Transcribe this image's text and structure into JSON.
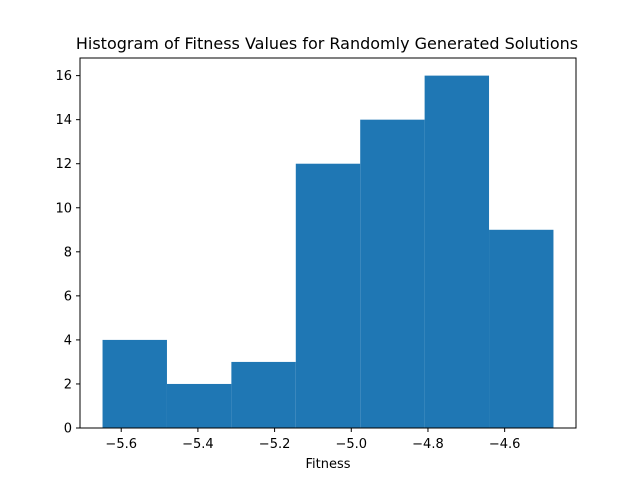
{
  "chart_data": {
    "type": "bar",
    "title": "Histogram of Fitness Values for Randomly Generated Solutions",
    "xlabel": "Fitness",
    "ylabel": "",
    "bin_edges": [
      -5.6487,
      -5.4807,
      -5.3127,
      -5.1447,
      -4.9767,
      -4.8087,
      -4.6407,
      -4.4727
    ],
    "values": [
      4,
      2,
      3,
      12,
      14,
      16,
      9
    ],
    "bar_color": "#1f77b4",
    "xlim": [
      -5.7075,
      -4.4139
    ],
    "ylim": [
      0,
      16.8
    ],
    "xticks": [
      -5.6,
      -5.4,
      -5.2,
      -5.0,
      -4.8,
      -4.6
    ],
    "xtick_labels": [
      "−5.6",
      "−5.4",
      "−5.2",
      "−5.0",
      "−4.8",
      "−4.6"
    ],
    "yticks": [
      0,
      2,
      4,
      6,
      8,
      10,
      12,
      14,
      16
    ],
    "ytick_labels": [
      "0",
      "2",
      "4",
      "6",
      "8",
      "10",
      "12",
      "14",
      "16"
    ],
    "grid": false,
    "legend": "none"
  }
}
